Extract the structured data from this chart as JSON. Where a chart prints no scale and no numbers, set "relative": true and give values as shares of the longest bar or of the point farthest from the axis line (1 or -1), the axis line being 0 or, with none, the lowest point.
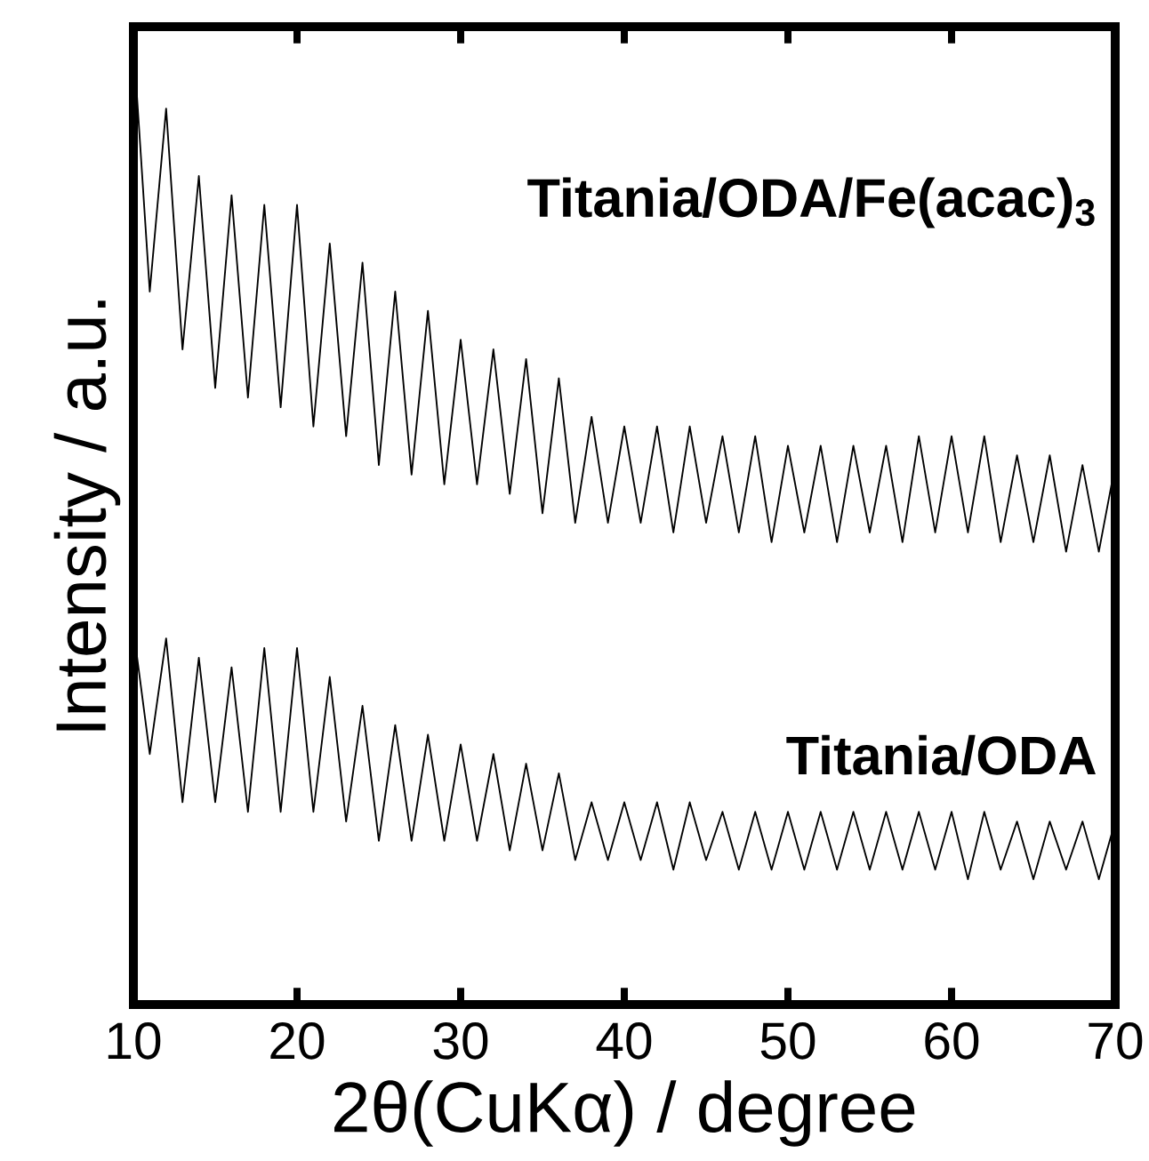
{
  "chart_data": {
    "type": "line",
    "relative": true,
    "xlabel": "2θ(CuKα) / degree",
    "ylabel": "Intensity / a.u.",
    "xlim": [
      10,
      70
    ],
    "xticks": [
      10,
      20,
      30,
      40,
      50,
      60,
      70
    ],
    "tick_labels": "x",
    "x": [
      10,
      11,
      12,
      13,
      14,
      15,
      16,
      17,
      18,
      19,
      20,
      21,
      22,
      23,
      24,
      25,
      26,
      27,
      28,
      29,
      30,
      31,
      32,
      33,
      34,
      35,
      36,
      37,
      38,
      39,
      40,
      41,
      42,
      43,
      44,
      45,
      46,
      47,
      48,
      49,
      50,
      51,
      52,
      53,
      54,
      55,
      56,
      57,
      58,
      59,
      60,
      61,
      62,
      63,
      64,
      65,
      66,
      67,
      68,
      69,
      70
    ],
    "series": [
      {
        "name": "Titania/ODA/Fe(acac)$_{3}$",
        "color": "#000000",
        "values": [
          1.0,
          0.74,
          0.93,
          0.68,
          0.86,
          0.64,
          0.84,
          0.63,
          0.83,
          0.62,
          0.83,
          0.6,
          0.79,
          0.59,
          0.77,
          0.56,
          0.74,
          0.55,
          0.72,
          0.54,
          0.69,
          0.54,
          0.68,
          0.53,
          0.67,
          0.51,
          0.65,
          0.5,
          0.61,
          0.5,
          0.6,
          0.5,
          0.6,
          0.49,
          0.6,
          0.5,
          0.59,
          0.49,
          0.59,
          0.48,
          0.58,
          0.49,
          0.58,
          0.48,
          0.58,
          0.49,
          0.58,
          0.48,
          0.59,
          0.49,
          0.59,
          0.49,
          0.59,
          0.48,
          0.57,
          0.48,
          0.57,
          0.47,
          0.56,
          0.47,
          0.56
        ]
      },
      {
        "name": "Titania/ODA",
        "color": "#000000",
        "values": [
          0.39,
          0.26,
          0.38,
          0.21,
          0.36,
          0.21,
          0.35,
          0.2,
          0.37,
          0.2,
          0.37,
          0.2,
          0.34,
          0.19,
          0.31,
          0.17,
          0.29,
          0.17,
          0.28,
          0.17,
          0.27,
          0.17,
          0.26,
          0.16,
          0.25,
          0.16,
          0.24,
          0.15,
          0.21,
          0.15,
          0.21,
          0.15,
          0.21,
          0.14,
          0.21,
          0.15,
          0.2,
          0.14,
          0.2,
          0.14,
          0.2,
          0.14,
          0.2,
          0.14,
          0.2,
          0.14,
          0.2,
          0.14,
          0.2,
          0.14,
          0.2,
          0.13,
          0.2,
          0.14,
          0.19,
          0.13,
          0.19,
          0.14,
          0.19,
          0.13,
          0.19
        ]
      }
    ]
  }
}
